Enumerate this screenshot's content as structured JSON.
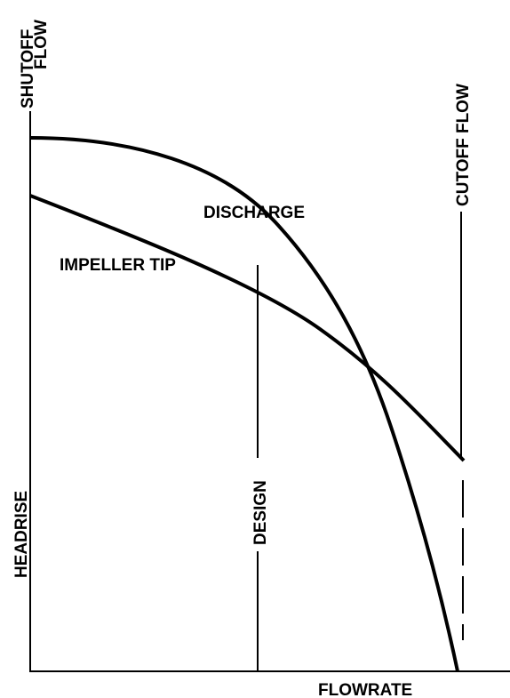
{
  "axes": {
    "y_label": "HEADRISE",
    "x_label": "FLOWRATE"
  },
  "markers": {
    "shutoff": {
      "lines": [
        "SHUTOFF",
        "FLOW"
      ]
    },
    "cutoff": {
      "label": "CUTOFF FLOW"
    },
    "design": {
      "label": "DESIGN"
    }
  },
  "curves": {
    "discharge": {
      "label": "DISCHARGE"
    },
    "impeller_tip": {
      "label": "IMPELLER TIP"
    }
  }
}
